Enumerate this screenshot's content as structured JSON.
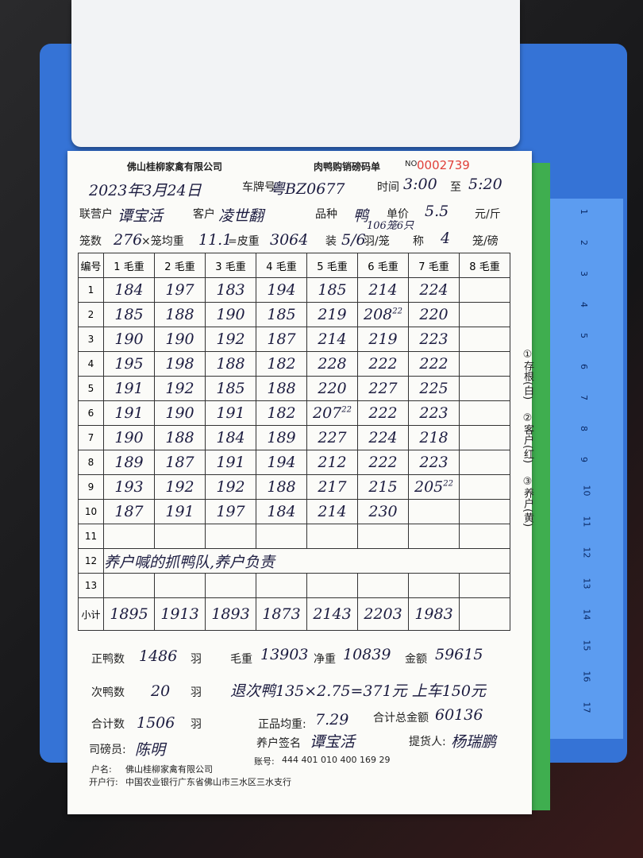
{
  "header": {
    "company": "佛山桂柳家禽有限公司",
    "title": "肉鸭购销磅码单",
    "no_label": "NO",
    "serial": "0002739"
  },
  "info": {
    "date": "2023年3月24日",
    "plate_label": "车牌号",
    "plate": "粤BZ0677",
    "time_label": "时间",
    "time_start": "3:00",
    "time_to": "至",
    "time_end": "5:20",
    "partner_label": "联营户",
    "partner": "谭宝活",
    "customer_label": "客户",
    "customer": "凌世翻",
    "breed_label": "品种",
    "breed": "鸭",
    "price_label": "单价",
    "price": "5.5",
    "price_unit": "元/斤",
    "cages_label": "笼数",
    "cages": "276",
    "cage_weight_label": "×笼均重",
    "cage_weight": "11.1",
    "tare_label": "=皮重",
    "tare": "3064",
    "load_label": "装",
    "load": "5/6",
    "load_unit": "羽/笼",
    "load_note": "106笼6只",
    "scale_label": "称",
    "scale": "4",
    "scale_unit": "笼/磅"
  },
  "table": {
    "no_header": "编号",
    "columns": [
      "1 毛重",
      "2 毛重",
      "3 毛重",
      "4 毛重",
      "5 毛重",
      "6 毛重",
      "7 毛重",
      "8 毛重"
    ],
    "rows": [
      {
        "no": "1",
        "cells": [
          "184",
          "197",
          "183",
          "194",
          "185",
          "214",
          "224"
        ]
      },
      {
        "no": "2",
        "cells": [
          "185",
          "188",
          "190",
          "185",
          "219",
          {
            "text": "208",
            "note": "22"
          },
          "220"
        ]
      },
      {
        "no": "3",
        "cells": [
          "190",
          "190",
          "192",
          "187",
          "214",
          "219",
          "223"
        ]
      },
      {
        "no": "4",
        "cells": [
          "195",
          "198",
          "188",
          "182",
          "228",
          "222",
          "222"
        ]
      },
      {
        "no": "5",
        "cells": [
          "191",
          "192",
          "185",
          "188",
          "220",
          "227",
          "225"
        ]
      },
      {
        "no": "6",
        "cells": [
          "191",
          "190",
          "191",
          "182",
          {
            "text": "207",
            "note": "22"
          },
          "222",
          "223"
        ]
      },
      {
        "no": "7",
        "cells": [
          "190",
          "188",
          "184",
          "189",
          "227",
          "224",
          "218"
        ]
      },
      {
        "no": "8",
        "cells": [
          "189",
          "187",
          "191",
          "194",
          "212",
          "222",
          "223"
        ]
      },
      {
        "no": "9",
        "cells": [
          "193",
          "192",
          "192",
          "188",
          "217",
          "215",
          {
            "text": "205",
            "note": "22"
          }
        ]
      },
      {
        "no": "10",
        "cells": [
          "187",
          "191",
          "197",
          "184",
          "214",
          "230"
        ]
      },
      {
        "no": "11"
      },
      {
        "no": "12",
        "note": "养户喊的抓鸭队,养户负责"
      },
      {
        "no": "13"
      }
    ],
    "subtotal_label": "小计",
    "subtotal": [
      "1895",
      "1913",
      "1893",
      "1873",
      "2143",
      "2203",
      "1983"
    ]
  },
  "summary": {
    "good_label": "正鸭数",
    "good": "1486",
    "good_unit": "羽",
    "gross_label": "毛重",
    "gross": "13903",
    "net_label": "净重",
    "net": "10839",
    "amount_label": "金额",
    "amount": "59615",
    "bad_label": "次鸭数",
    "bad": "20",
    "bad_unit": "羽",
    "bad_note": "退次鸭135×2.75=371元 上车150元",
    "total_label": "合计数",
    "total": "1506",
    "total_unit": "羽",
    "avg_label": "正品均重:",
    "avg": "7.29",
    "grand_label": "合计总金额",
    "grand": "60136",
    "weigher_label": "司磅员:",
    "weigher": "陈明",
    "farmer_label": "养户签名",
    "farmer": "谭宝活",
    "picker_label": "提货人:",
    "picker": "杨瑞鹏"
  },
  "bank": {
    "name_label": "户名:",
    "name": "佛山桂柳家禽有限公司",
    "account_label": "账号:",
    "account": "444 401 010 400 169 29",
    "branch_label": "开户行:",
    "branch": "中国农业银行广东省佛山市三水区三水支行"
  },
  "copies": [
    "①存根(白)",
    "②客户(红)",
    "③养户(黄)"
  ],
  "ruler": [
    "1",
    "2",
    "3",
    "4",
    "5",
    "6",
    "7",
    "8",
    "9",
    "10",
    "11",
    "12",
    "13",
    "14",
    "15",
    "16",
    "17"
  ]
}
